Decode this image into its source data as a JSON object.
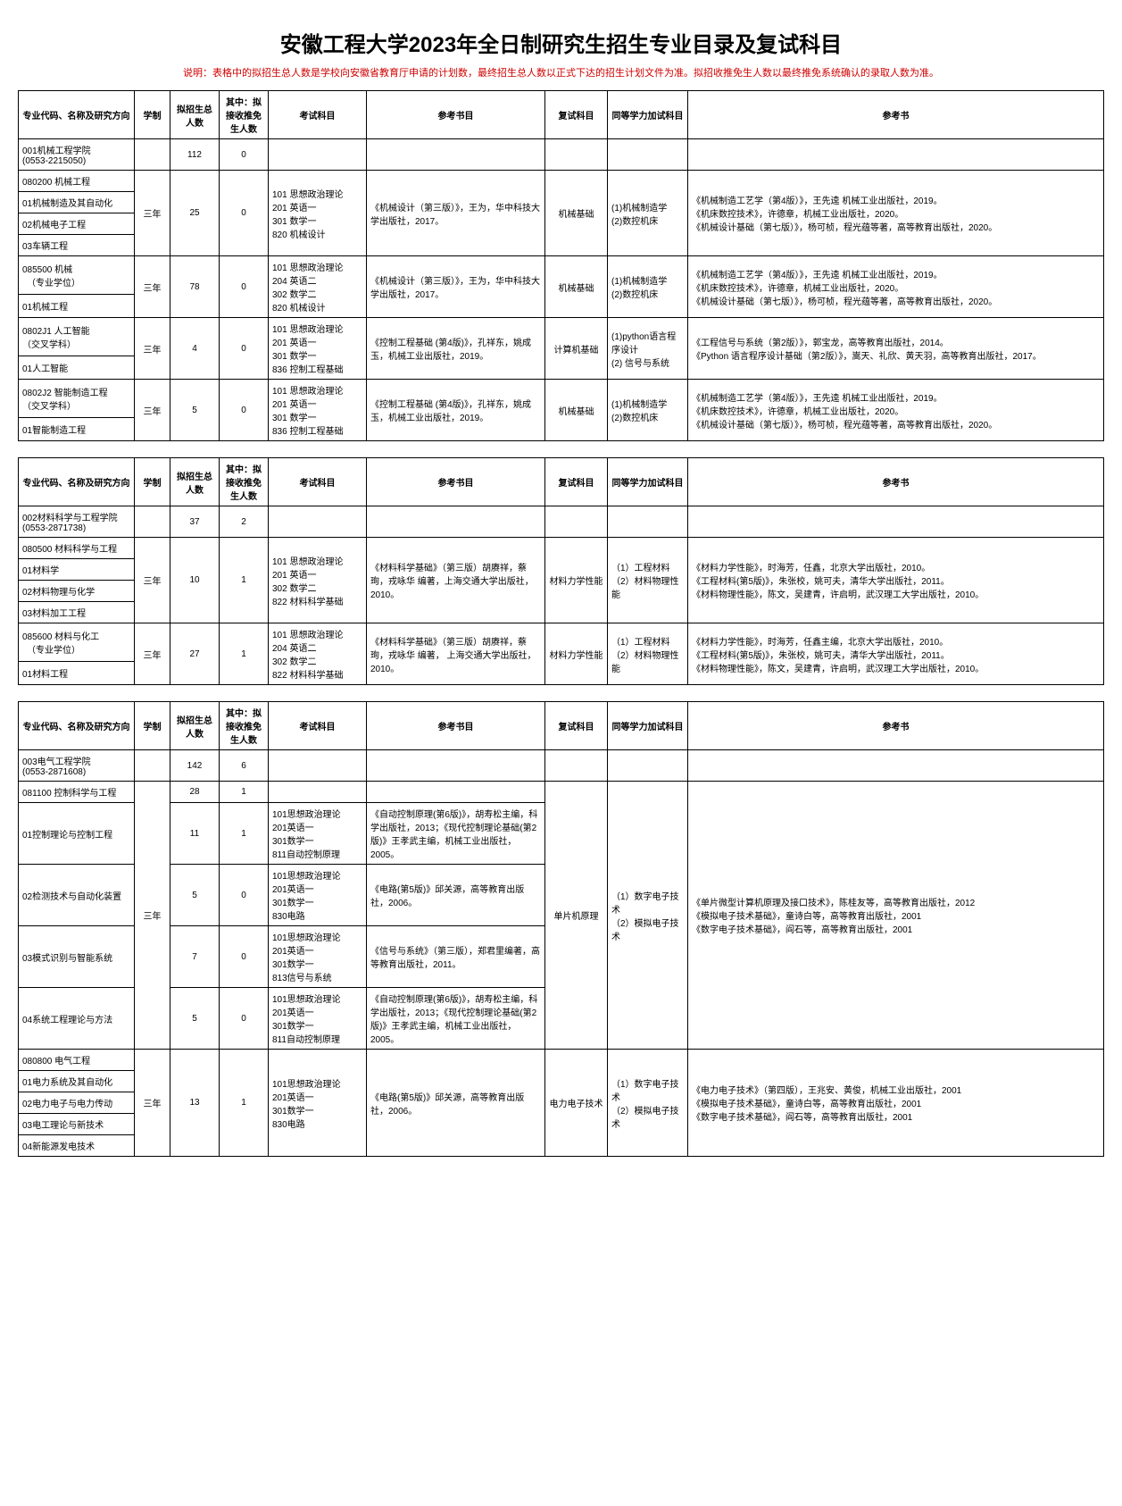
{
  "title": "安徽工程大学2023年全日制研究生招生专业目录及复试科目",
  "note": "说明：表格中的拟招生总人数是学校向安徽省教育厅申请的计划数，最终招生总人数以正式下达的招生计划文件为准。拟招收推免生人数以最终推免系统确认的录取人数为准。",
  "head": {
    "c1": "专业代码、名称及研究方向",
    "c2": "学制",
    "c3": "拟招生总人数",
    "c4": "其中：拟接收推免生人数",
    "c5": "考试科目",
    "c6": "参考书目",
    "c7": "复试科目",
    "c8": "同等学力加试科目",
    "c9": "参考书"
  },
  "t1": {
    "dept": "001机械工程学院\n(0553-2215050)",
    "dept_total": "112",
    "dept_tm": "0",
    "maj1": "080200 机械工程",
    "dir1a": "01机械制造及其自动化",
    "dir1b": "02机械电子工程",
    "dir1c": "03车辆工程",
    "xz1": "三年",
    "tot1": "25",
    "tm1": "0",
    "exam1": "101 思想政治理论\n201 英语一\n301 数学一\n820 机械设计",
    "ref1": "《机械设计（第三版）》，王为，华中科技大学出版社，2017。",
    "fs1": "机械基础",
    "td1": "(1)机械制造学\n(2)数控机床",
    "book1": "《机械制造工艺学（第4版）》，王先逵  机械工业出版社，2019。\n《机床数控技术》，许德章，机械工业出版社，2020。\n《机械设计基础（第七版）》，杨可桢，程光蕴等著，高等教育出版社，2020。",
    "maj2": "085500 机械\n　（专业学位）",
    "dir2a": "01机械工程",
    "xz2": "三年",
    "tot2": "78",
    "tm2": "0",
    "exam2": "101 思想政治理论\n204 英语二\n302 数学二\n820 机械设计",
    "ref2": "《机械设计（第三版）》，王为，华中科技大学出版社，2017。",
    "fs2": "机械基础",
    "td2": "(1)机械制造学\n(2)数控机床",
    "book2": "《机械制造工艺学（第4版）》，王先逵  机械工业出版社，2019。\n《机床数控技术》，许德章，机械工业出版社，2020。\n《机械设计基础（第七版）》，杨可桢，程光蕴等著，高等教育出版社，2020。",
    "maj3": "0802J1 人工智能\n（交叉学科）",
    "dir3a": "01人工智能",
    "xz3": "三年",
    "tot3": "4",
    "tm3": "0",
    "exam3": "101 思想政治理论\n201 英语一\n301 数学一\n836 控制工程基础",
    "ref3": "《控制工程基础  (第4版)》，孔祥东，姚成玉，机械工业出版社，2019。",
    "fs3": "计算机基础",
    "td3": "(1)python语言程序设计\n(2) 信号与系统",
    "book3": "《工程信号与系统（第2版）》，郭宝龙，高等教育出版社，2014。\n《Python 语言程序设计基础（第2版）》，嵩天、礼欣、黄天羽，高等教育出版社，2017。",
    "maj4": "0802J2 智能制造工程\n（交叉学科）",
    "dir4a": "01智能制造工程",
    "xz4": "三年",
    "tot4": "5",
    "tm4": "0",
    "exam4": "101 思想政治理论\n201 英语一\n301 数学一\n836 控制工程基础",
    "ref4": "《控制工程基础  (第4版)》，孔祥东，姚成玉，机械工业出版社，2019。",
    "fs4": "机械基础",
    "td4": "(1)机械制造学\n(2)数控机床",
    "book4": "《机械制造工艺学（第4版）》，王先逵  机械工业出版社，2019。\n《机床数控技术》，许德章，机械工业出版社，2020。\n《机械设计基础（第七版）》，杨可桢，程光蕴等著，高等教育出版社，2020。"
  },
  "t2": {
    "dept": "002材料科学与工程学院\n(0553-2871738)",
    "dept_total": "37",
    "dept_tm": "2",
    "maj1": "080500 材料科学与工程",
    "dir1a": "01材料学",
    "dir1b": "02材料物理与化学",
    "dir1c": "03材料加工工程",
    "xz1": "三年",
    "tot1": "10",
    "tm1": "1",
    "exam1": "101 思想政治理论\n201 英语一\n302 数学二\n822 材料科学基础",
    "ref1": "《材料科学基础》（第三版）胡赓祥，蔡珣，戎咏华 编著，上海交通大学出版社，2010。",
    "fs1": "材料力学性能",
    "td1": "（1）工程材料\n（2）材料物理性能",
    "book1": "《材料力学性能》，时海芳，任鑫，北京大学出版社，2010。\n《工程材料(第5版)》，朱张校，姚可夫，清华大学出版社，2011。\n《材料物理性能》，陈文，吴建青，许启明，武汉理工大学出版社，2010。",
    "maj2": "085600 材料与化工\n　（专业学位）",
    "dir2a": "01材料工程",
    "xz2": "三年",
    "tot2": "27",
    "tm2": "1",
    "exam2": "101 思想政治理论\n204 英语二\n302 数学二\n822 材料科学基础",
    "ref2": "《材料科学基础》（第三版）胡赓祥，蔡珣，戎咏华 编著， 上海交通大学出版社，2010。",
    "fs2": "材料力学性能",
    "td2": "（1）工程材料\n（2）材料物理性能",
    "book2": "《材料力学性能》，时海芳，任鑫主编，北京大学出版社，2010。\n《工程材料(第5版)》，朱张校，姚可夫，清华大学出版社，2011。\n《材料物理性能》，陈文，吴建青，许启明，武汉理工大学出版社，2010。"
  },
  "t3": {
    "dept": "003电气工程学院\n(0553-2871608)",
    "dept_total": "142",
    "dept_tm": "6",
    "maj1": "081100 控制科学与工程",
    "tot1": "28",
    "tm1": "1",
    "dir1a": "01控制理论与控制工程",
    "tot1a": "11",
    "tm1a": "1",
    "exam1a": "101思想政治理论\n201英语一\n301数学一\n811自动控制原理",
    "ref1a": "《自动控制原理(第6版)》，胡寿松主编，科学出版社，2013；《现代控制理论基础(第2版)》王孝武主编，机械工业出版社，2005。",
    "dir1b": "02检测技术与自动化装置",
    "tot1b": "5",
    "tm1b": "0",
    "exam1b": "101思想政治理论\n201英语一\n301数学一\n830电路",
    "ref1b": "《电路(第5版)》邱关源，高等教育出版社，2006。",
    "dir1c": "03模式识别与智能系统",
    "tot1c": "7",
    "tm1c": "0",
    "exam1c": "101思想政治理论\n201英语一\n301数学一\n813信号与系统",
    "ref1c": "《信号与系统》（第三版），郑君里编著，高等教育出版社，2011。",
    "dir1d": "04系统工程理论与方法",
    "tot1d": "5",
    "tm1d": "0",
    "exam1d": "101思想政治理论\n201英语一\n301数学一\n811自动控制原理",
    "ref1d": "《自动控制原理(第6版)》，胡寿松主编，科学出版社，2013；《现代控制理论基础(第2版)》王孝武主编，机械工业出版社，2005。",
    "xz1": "三年",
    "fs1": "单片机原理",
    "td_ctrl": "（1）数字电子技术\n（2）模拟电子技术",
    "book_ctrl": "《单片微型计算机原理及接口技术》，陈桂友等，高等教育出版社，2012\n《模拟电子技术基础》，童诗白等，高等教育出版社，2001\n《数字电子技术基础》，阎石等，高等教育出版社，2001",
    "maj2": "080800 电气工程",
    "dir2a": "01电力系统及其自动化",
    "dir2b": "02电力电子与电力传动",
    "dir2c": "03电工理论与新技术",
    "dir2d": "04新能源发电技术",
    "xz2": "三年",
    "tot2": "13",
    "tm2": "1",
    "exam2": "101思想政治理论\n201英语一\n301数学一\n830电路",
    "ref2": "《电路(第5版)》邱关源，高等教育出版社，2006。",
    "fs2": "电力电子技术",
    "td2": "（1）数字电子技术\n（2）模拟电子技术",
    "book2": "《电力电子技术》（第四版），王兆安、黄俊，机械工业出版社，2001\n《模拟电子技术基础》，童诗白等，高等教育出版社，2001\n《数字电子技术基础》，阎石等，高等教育出版社，2001"
  }
}
